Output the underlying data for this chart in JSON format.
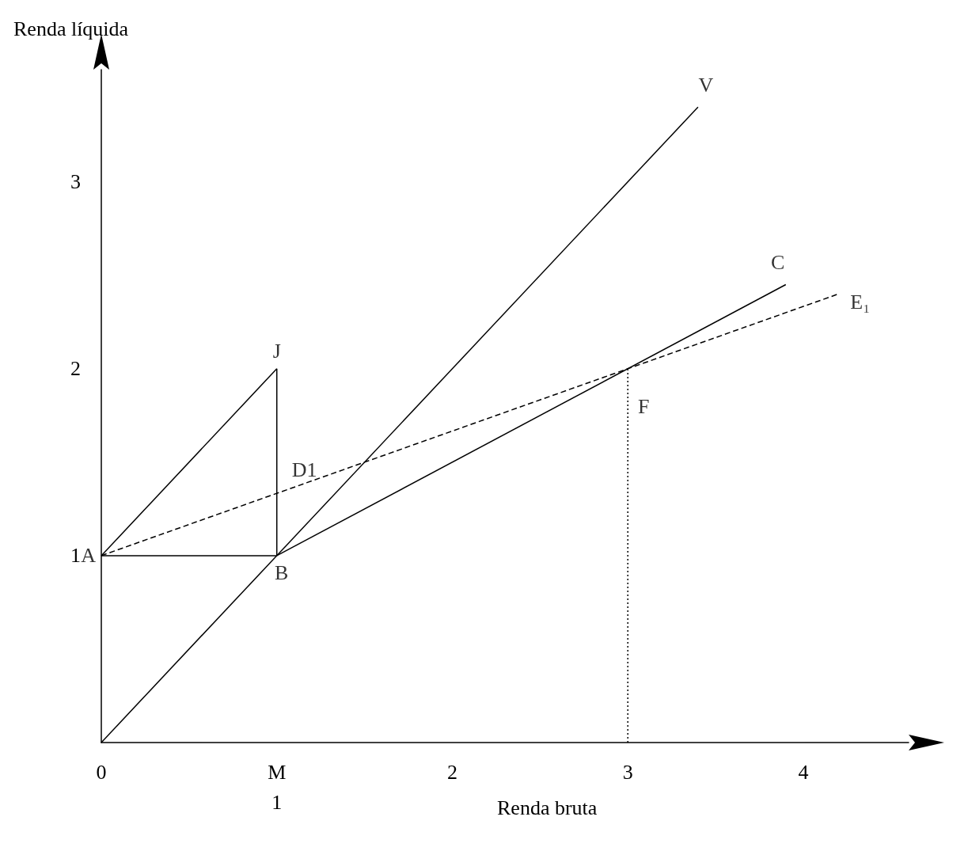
{
  "chart_data": {
    "type": "line",
    "xlabel": "Renda bruta",
    "ylabel": "Renda líquida",
    "xlim": [
      0,
      4.6
    ],
    "ylim": [
      0,
      3.6
    ],
    "xticks": [
      0,
      {
        "value": 1,
        "label": "M\n1"
      },
      2,
      3,
      4
    ],
    "yticks": [
      1,
      2,
      3
    ],
    "grid": false,
    "marker": "none",
    "series": [
      {
        "x": [
          0,
          3.4
        ],
        "values": [
          0,
          3.4
        ],
        "color": "#000000",
        "line_style": "solid"
      },
      {
        "x": [
          0,
          1
        ],
        "values": [
          1,
          2
        ],
        "color": "#000000",
        "line_style": "solid"
      },
      {
        "x": [
          1,
          1
        ],
        "values": [
          2,
          1
        ],
        "color": "#000000",
        "line_style": "solid"
      },
      {
        "x": [
          0,
          1
        ],
        "values": [
          1,
          1
        ],
        "color": "#000000",
        "line_style": "solid"
      },
      {
        "x": [
          1,
          3.9
        ],
        "values": [
          1,
          2.45
        ],
        "color": "#000000",
        "line_style": "solid"
      },
      {
        "x": [
          0,
          4.2
        ],
        "values": [
          1,
          2.4
        ],
        "color": "#000000",
        "line_style": "dashed"
      },
      {
        "x": [
          3,
          3
        ],
        "values": [
          0,
          2
        ],
        "color": "#000000",
        "line_style": "dotted"
      }
    ],
    "annotations": [
      {
        "text": "A",
        "x": 0,
        "y": 1
      },
      {
        "text": "B",
        "x": 1,
        "y": 1
      },
      {
        "text": "J",
        "x": 1,
        "y": 2
      },
      {
        "text": "D1",
        "x": 1,
        "y": 1.33
      },
      {
        "text": "F",
        "x": 3,
        "y": 2
      },
      {
        "text": "C",
        "x": 3.9,
        "y": 2.45
      },
      {
        "text": "V",
        "x": 3.4,
        "y": 3.4
      },
      {
        "text": "E₁",
        "x": 4.2,
        "y": 2.4
      }
    ]
  }
}
